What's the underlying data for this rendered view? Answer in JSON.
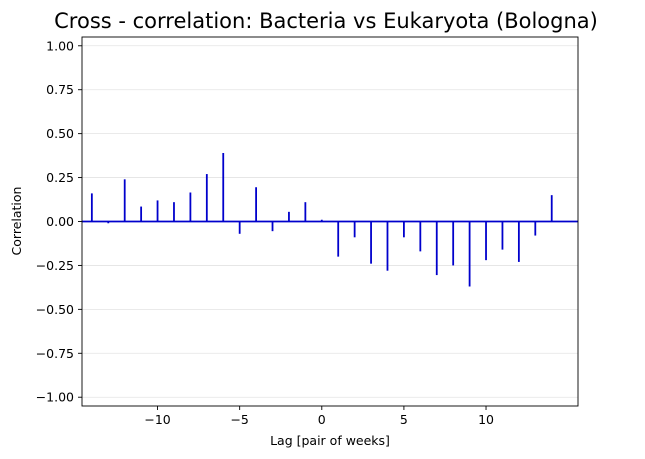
{
  "chart_data": {
    "type": "bar",
    "title": "Cross - correlation: Bacteria vs Eukaryota (Bologna)",
    "xlabel": "Lag [pair of weeks]",
    "ylabel": "Correlation",
    "xlim": [
      -14.6,
      15.6
    ],
    "ylim": [
      -1.05,
      1.05
    ],
    "xticks": [
      -10,
      -5,
      0,
      5,
      10
    ],
    "xtick_labels": [
      "−10",
      "−5",
      "0",
      "5",
      "10"
    ],
    "yticks": [
      1.0,
      0.75,
      0.5,
      0.25,
      0.0,
      -0.25,
      -0.5,
      -0.75,
      -1.0
    ],
    "ytick_labels": [
      "1.00",
      "0.75",
      "0.50",
      "0.25",
      "0.00",
      "−0.25",
      "−0.50",
      "−0.75",
      "−1.00"
    ],
    "grid": "horizontal",
    "baseline": 0,
    "color": "#0000cc",
    "x": [
      -14,
      -13,
      -12,
      -11,
      -10,
      -9,
      -8,
      -7,
      -6,
      -5,
      -4,
      -3,
      -2,
      -1,
      0,
      1,
      2,
      3,
      4,
      5,
      6,
      7,
      8,
      9,
      10,
      11,
      12,
      13,
      14
    ],
    "values": [
      0.16,
      -0.01,
      0.24,
      0.085,
      0.12,
      0.11,
      0.165,
      0.27,
      0.39,
      -0.07,
      0.195,
      -0.055,
      0.055,
      0.11,
      0.01,
      -0.2,
      -0.09,
      -0.24,
      -0.28,
      -0.09,
      -0.17,
      -0.305,
      -0.25,
      -0.37,
      -0.22,
      -0.16,
      -0.23,
      -0.08,
      0.15
    ]
  }
}
